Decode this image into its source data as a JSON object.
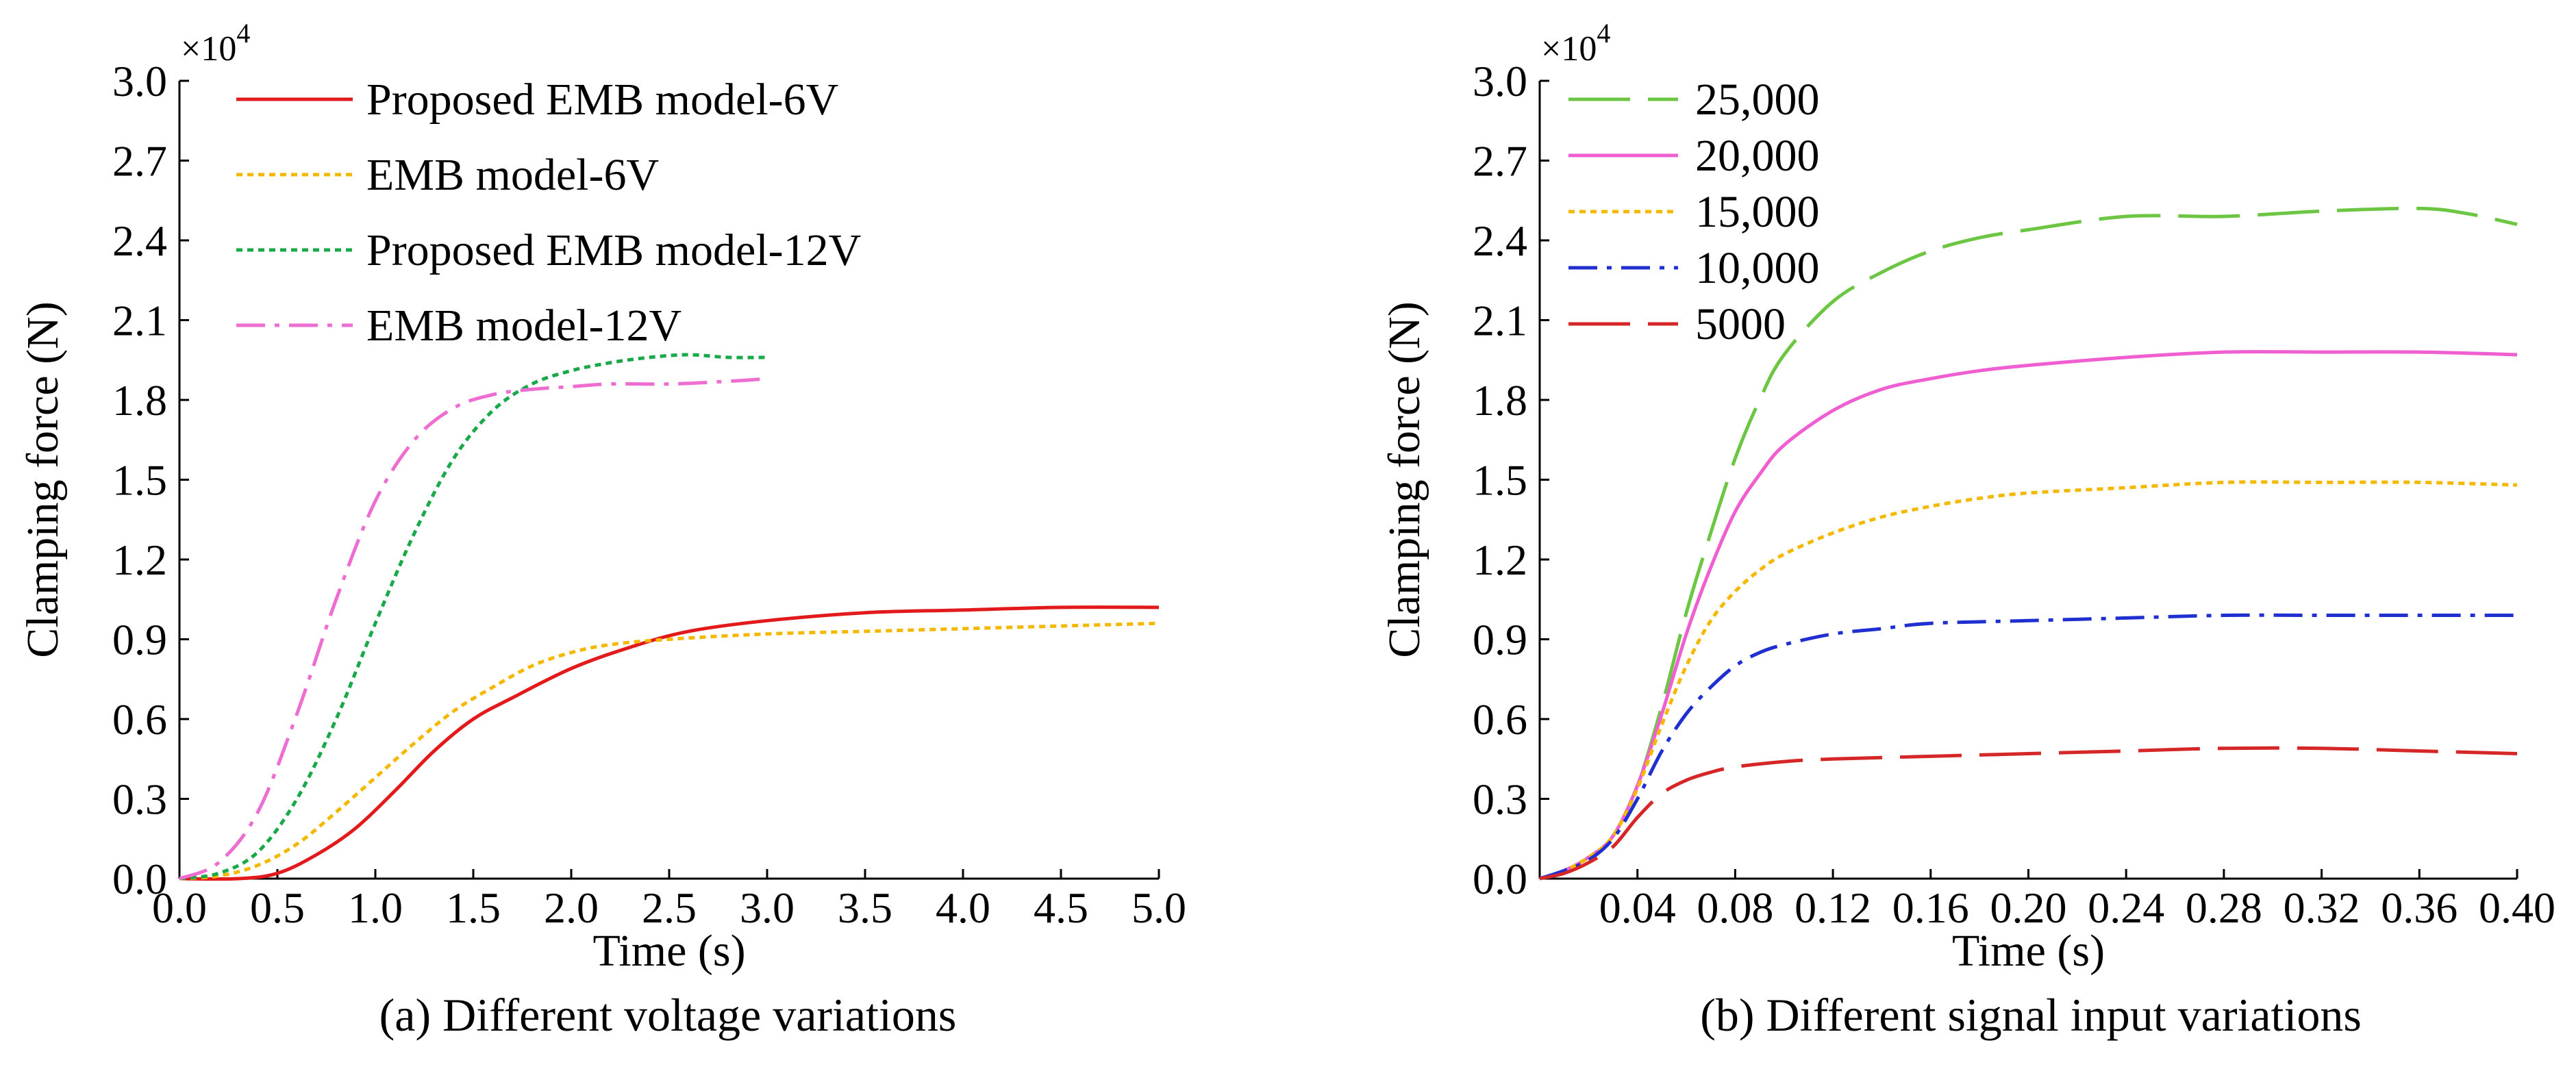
{
  "chart_data": [
    {
      "type": "line",
      "caption": "(a) Different voltage variations",
      "xlabel": "Time (s)",
      "ylabel": "Clamping force (N)",
      "y_multiplier": "×10",
      "y_multiplier_exp": "4",
      "xlim": [
        0,
        5
      ],
      "ylim": [
        0,
        3
      ],
      "x_ticks": [
        "0.0",
        "0.5",
        "1.0",
        "1.5",
        "2.0",
        "2.5",
        "3.0",
        "3.5",
        "4.0",
        "4.5",
        "5.0"
      ],
      "y_ticks": [
        "0.0",
        "0.3",
        "0.6",
        "0.9",
        "1.2",
        "1.5",
        "1.8",
        "2.1",
        "2.4",
        "2.7",
        "3.0"
      ],
      "legend_position": "top-left",
      "series": [
        {
          "name": "Proposed EMB model-6V",
          "color": "#e31a1c",
          "dash": "solid",
          "x": [
            0,
            0.3,
            0.5,
            0.7,
            0.9,
            1.1,
            1.3,
            1.5,
            1.7,
            2.0,
            2.3,
            2.6,
            3.0,
            3.5,
            4.0,
            4.5,
            5.0
          ],
          "y": [
            0,
            0.0,
            0.02,
            0.09,
            0.19,
            0.33,
            0.48,
            0.6,
            0.68,
            0.79,
            0.87,
            0.93,
            0.97,
            1.0,
            1.01,
            1.02,
            1.02
          ]
        },
        {
          "name": "EMB model-6V",
          "color": "#f5b800",
          "dash": "dot",
          "x": [
            0,
            0.2,
            0.4,
            0.6,
            0.8,
            1.0,
            1.2,
            1.4,
            1.6,
            1.8,
            2.0,
            2.2,
            2.5,
            3.0,
            3.5,
            4.0,
            4.5,
            5.0
          ],
          "y": [
            0,
            0.01,
            0.05,
            0.13,
            0.25,
            0.38,
            0.51,
            0.63,
            0.72,
            0.8,
            0.85,
            0.88,
            0.9,
            0.92,
            0.93,
            0.94,
            0.95,
            0.96
          ]
        },
        {
          "name": "Proposed EMB model-12V",
          "color": "#1aa84a",
          "dash": "dot",
          "x": [
            0,
            0.2,
            0.4,
            0.6,
            0.8,
            1.0,
            1.2,
            1.4,
            1.6,
            1.8,
            2.0,
            2.2,
            2.4,
            2.6,
            2.8,
            3.0
          ],
          "y": [
            0,
            0.02,
            0.1,
            0.3,
            0.6,
            0.96,
            1.3,
            1.58,
            1.76,
            1.86,
            1.91,
            1.94,
            1.96,
            1.97,
            1.96,
            1.96
          ]
        },
        {
          "name": "EMB model-12V",
          "color": "#ee6dd0",
          "dash": "dashdot",
          "x": [
            0,
            0.2,
            0.4,
            0.6,
            0.8,
            1.0,
            1.2,
            1.4,
            1.6,
            1.8,
            2.0,
            2.2,
            2.5,
            2.8,
            3.0
          ],
          "y": [
            0,
            0.06,
            0.25,
            0.62,
            1.05,
            1.42,
            1.65,
            1.77,
            1.82,
            1.84,
            1.85,
            1.86,
            1.86,
            1.87,
            1.88
          ]
        }
      ]
    },
    {
      "type": "line",
      "caption": "(b) Different signal input variations",
      "xlabel": "Time (s)",
      "ylabel": "Clamping force (N)",
      "y_multiplier": "×10",
      "y_multiplier_exp": "4",
      "xlim": [
        0,
        0.4
      ],
      "ylim": [
        0,
        3
      ],
      "x_ticks": [
        "0.04",
        "0.08",
        "0.12",
        "0.16",
        "0.20",
        "0.24",
        "0.28",
        "0.32",
        "0.36",
        "0.40"
      ],
      "y_ticks": [
        "0.0",
        "0.3",
        "0.6",
        "0.9",
        "1.2",
        "1.5",
        "1.8",
        "2.1",
        "2.4",
        "2.7",
        "3.0"
      ],
      "legend_position": "top-left",
      "series": [
        {
          "name": "25,000",
          "color": "#6cc644",
          "dash": "longdash",
          "x": [
            0,
            0.01,
            0.02,
            0.03,
            0.04,
            0.05,
            0.06,
            0.07,
            0.08,
            0.09,
            0.1,
            0.12,
            0.14,
            0.16,
            0.18,
            0.2,
            0.24,
            0.28,
            0.32,
            0.36,
            0.38,
            0.4
          ],
          "y": [
            0,
            0.03,
            0.08,
            0.16,
            0.35,
            0.65,
            1.0,
            1.3,
            1.58,
            1.8,
            1.97,
            2.17,
            2.28,
            2.36,
            2.41,
            2.44,
            2.49,
            2.49,
            2.51,
            2.52,
            2.5,
            2.46
          ]
        },
        {
          "name": "20,000",
          "color": "#ef5fd1",
          "dash": "solid",
          "x": [
            0,
            0.01,
            0.02,
            0.03,
            0.04,
            0.05,
            0.06,
            0.07,
            0.08,
            0.09,
            0.1,
            0.12,
            0.14,
            0.16,
            0.18,
            0.2,
            0.24,
            0.28,
            0.32,
            0.36,
            0.4
          ],
          "y": [
            0,
            0.03,
            0.08,
            0.16,
            0.35,
            0.62,
            0.92,
            1.17,
            1.38,
            1.52,
            1.63,
            1.76,
            1.84,
            1.88,
            1.91,
            1.93,
            1.96,
            1.98,
            1.98,
            1.98,
            1.97
          ]
        },
        {
          "name": "15,000",
          "color": "#f5b800",
          "dash": "dot",
          "x": [
            0,
            0.01,
            0.02,
            0.03,
            0.04,
            0.05,
            0.06,
            0.07,
            0.08,
            0.09,
            0.1,
            0.12,
            0.14,
            0.16,
            0.18,
            0.2,
            0.24,
            0.28,
            0.32,
            0.36,
            0.4
          ],
          "y": [
            0,
            0.03,
            0.08,
            0.16,
            0.34,
            0.58,
            0.8,
            0.97,
            1.08,
            1.16,
            1.22,
            1.3,
            1.36,
            1.4,
            1.43,
            1.45,
            1.47,
            1.49,
            1.49,
            1.49,
            1.48
          ]
        },
        {
          "name": "10,000",
          "color": "#1f2fd0",
          "dash": "dashdot",
          "x": [
            0,
            0.01,
            0.02,
            0.03,
            0.04,
            0.05,
            0.06,
            0.07,
            0.08,
            0.09,
            0.1,
            0.12,
            0.14,
            0.16,
            0.2,
            0.24,
            0.28,
            0.32,
            0.36,
            0.4
          ],
          "y": [
            0,
            0.03,
            0.07,
            0.15,
            0.3,
            0.48,
            0.62,
            0.72,
            0.8,
            0.85,
            0.88,
            0.92,
            0.94,
            0.96,
            0.97,
            0.98,
            0.99,
            0.99,
            0.99,
            0.99
          ]
        },
        {
          "name": "5000",
          "color": "#d62728",
          "dash": "longdash",
          "x": [
            0,
            0.01,
            0.02,
            0.03,
            0.04,
            0.05,
            0.06,
            0.07,
            0.08,
            0.1,
            0.12,
            0.16,
            0.2,
            0.24,
            0.28,
            0.32,
            0.36,
            0.4
          ],
          "y": [
            0,
            0.02,
            0.06,
            0.12,
            0.23,
            0.32,
            0.37,
            0.4,
            0.42,
            0.44,
            0.45,
            0.46,
            0.47,
            0.48,
            0.49,
            0.49,
            0.48,
            0.47
          ]
        }
      ]
    }
  ]
}
